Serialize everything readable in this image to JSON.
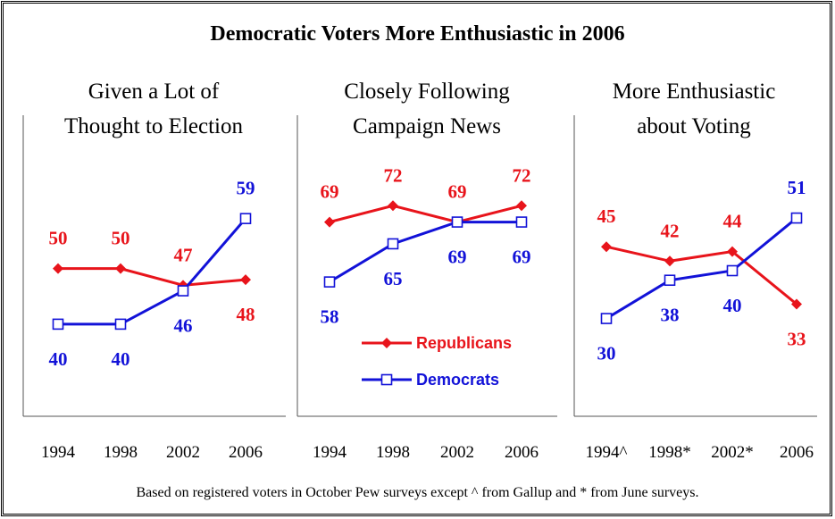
{
  "title": "Democratic Voters More Enthusiastic in 2006",
  "footnote": "Based on registered voters in October Pew surveys except ^ from Gallup and * from June surveys.",
  "colors": {
    "republicans": "#e8141b",
    "democrats": "#1212d8",
    "axis": "#555555"
  },
  "legend": {
    "republicans": "Republicans",
    "democrats": "Democrats",
    "republicans_marker": "filled-diamond",
    "democrats_marker": "hollow-square"
  },
  "chart_data": [
    {
      "type": "line",
      "title_lines": [
        "Given a Lot of",
        "Thought to Election"
      ],
      "categories": [
        "1994",
        "1998",
        "2002",
        "2006"
      ],
      "series": [
        {
          "name": "Republicans",
          "values": [
            50,
            50,
            47,
            48
          ]
        },
        {
          "name": "Democrats",
          "values": [
            40,
            40,
            46,
            59
          ]
        }
      ]
    },
    {
      "type": "line",
      "title_lines": [
        "Closely Following",
        "Campaign News"
      ],
      "categories": [
        "1994",
        "1998",
        "2002",
        "2006"
      ],
      "series": [
        {
          "name": "Republicans",
          "values": [
            69,
            72,
            69,
            72
          ]
        },
        {
          "name": "Democrats",
          "values": [
            58,
            65,
            69,
            69
          ]
        }
      ]
    },
    {
      "type": "line",
      "title_lines": [
        "More Enthusiastic",
        "about Voting"
      ],
      "categories": [
        "1994^",
        "1998*",
        "2002*",
        "2006"
      ],
      "series": [
        {
          "name": "Republicans",
          "values": [
            45,
            42,
            44,
            33
          ]
        },
        {
          "name": "Democrats",
          "values": [
            30,
            38,
            40,
            51
          ]
        }
      ]
    }
  ]
}
